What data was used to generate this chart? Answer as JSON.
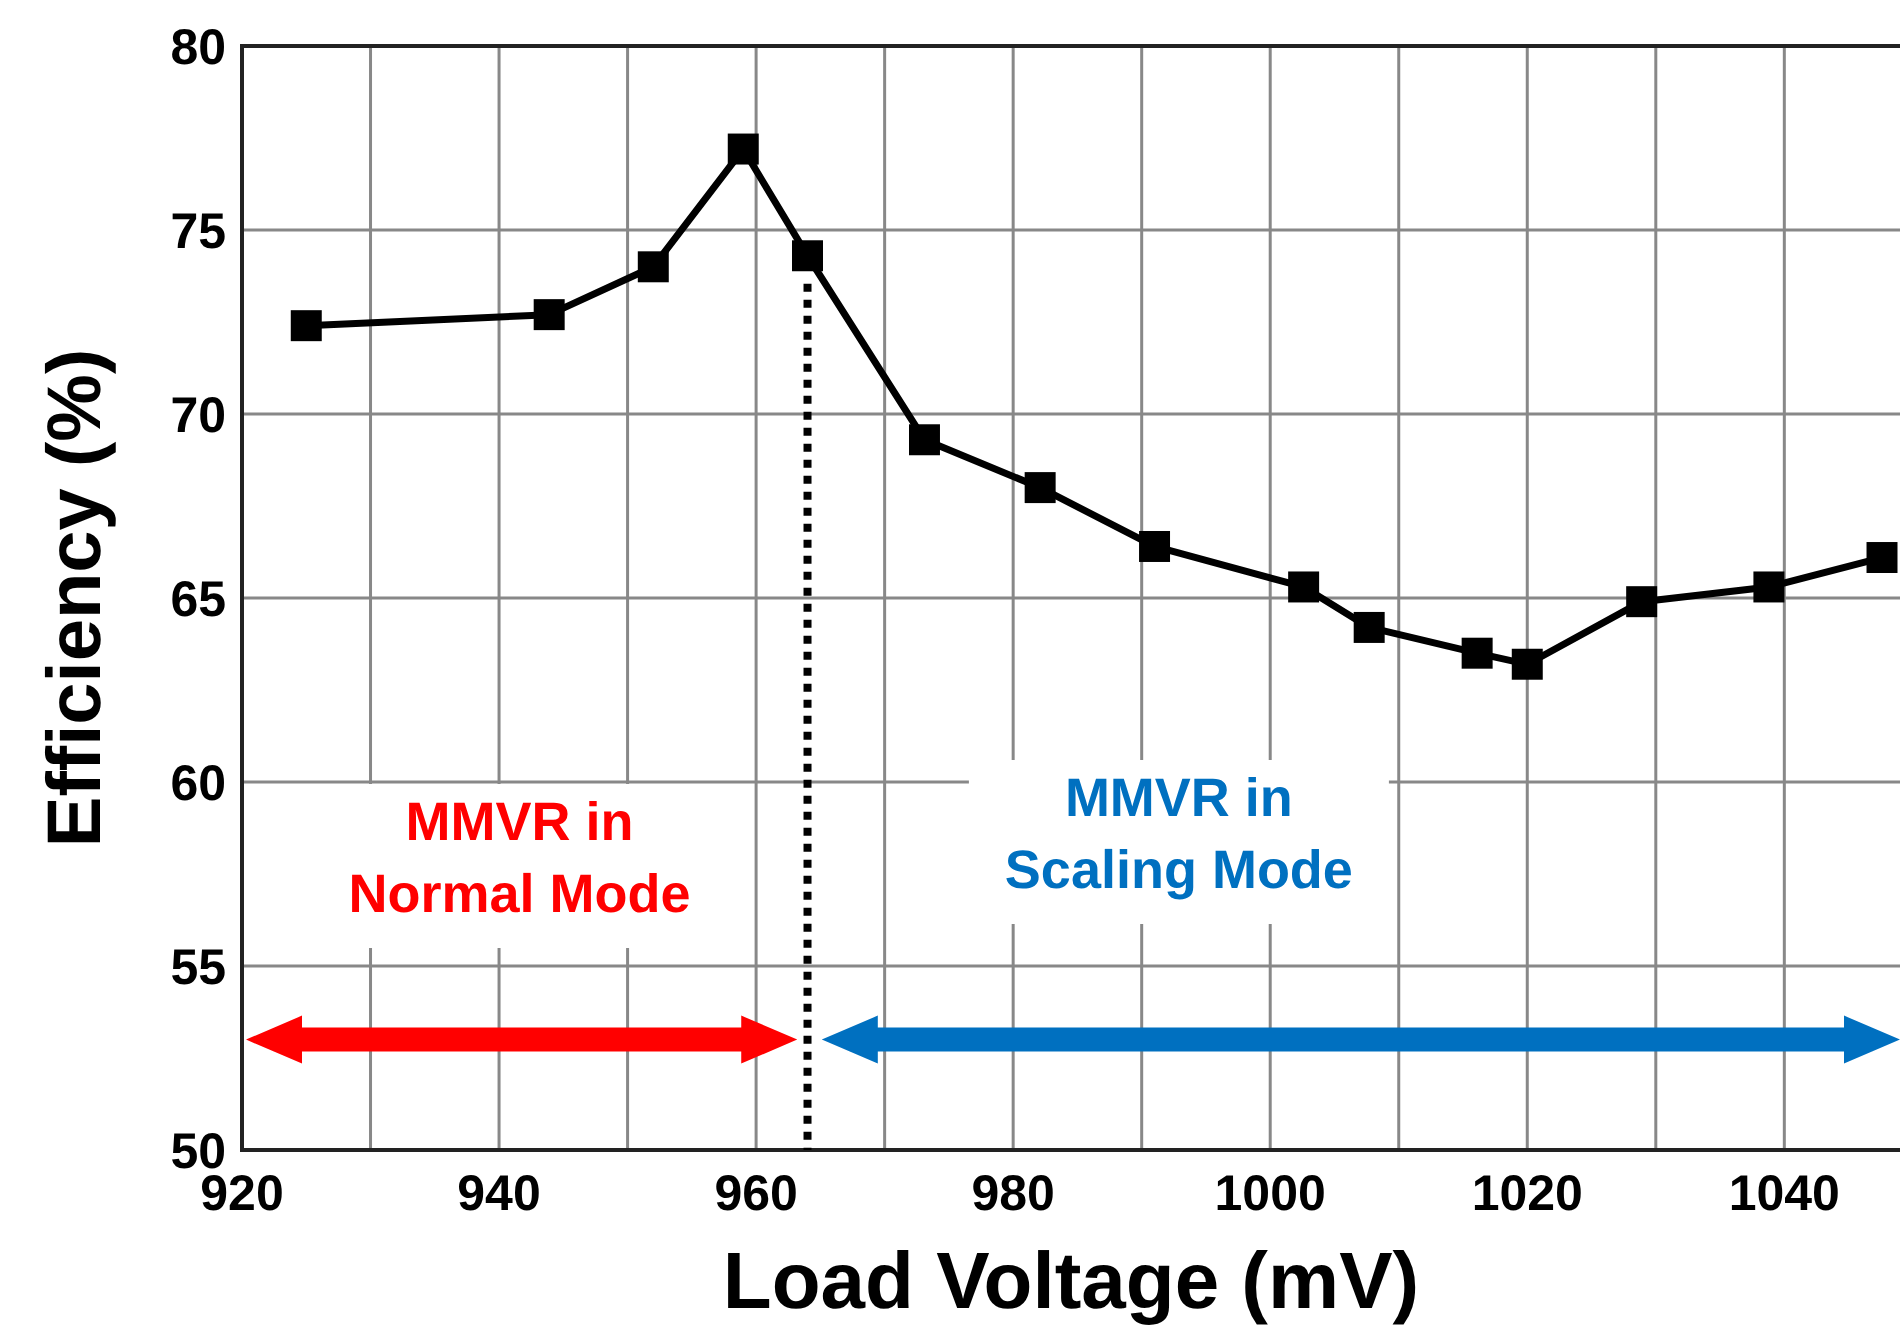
{
  "chart_data": {
    "type": "line",
    "xlabel": "Load Voltage (mV)",
    "ylabel": "Efficiency (%)",
    "x": [
      925,
      943.9,
      952,
      959,
      964,
      973.1,
      982.1,
      991,
      1002.6,
      1007.7,
      1016.1,
      1020,
      1028.9,
      1038.8,
      1047.6
    ],
    "series": [
      {
        "color": "#000000",
        "values": [
          72.4,
          72.7,
          74.0,
          77.2,
          74.3,
          69.3,
          68.0,
          66.4,
          65.3,
          64.2,
          63.5,
          63.2,
          64.9,
          65.3,
          66.1
        ]
      }
    ],
    "xlim": [
      920,
      1049
    ],
    "ylim": [
      50,
      80
    ],
    "xticks": [
      920,
      {
        "value": 930,
        "label": null
      },
      940,
      {
        "value": 950,
        "label": null
      },
      960,
      {
        "value": 970,
        "label": null
      },
      980,
      {
        "value": 990,
        "label": null
      },
      1000,
      {
        "value": 1010,
        "label": null
      },
      1020,
      {
        "value": 1030,
        "label": null
      },
      1040
    ],
    "yticks": [
      50,
      55,
      60,
      65,
      70,
      75,
      80
    ],
    "grid": true,
    "marker": "square",
    "line_style": "solid",
    "ref_lines": [
      {
        "axis": "x",
        "value": 964,
        "color": "#000000",
        "line_style": "dotted"
      }
    ],
    "annotations": [
      "MMVR in\nNormal Mode",
      "MMVR in\nScaling Mode"
    ]
  }
}
